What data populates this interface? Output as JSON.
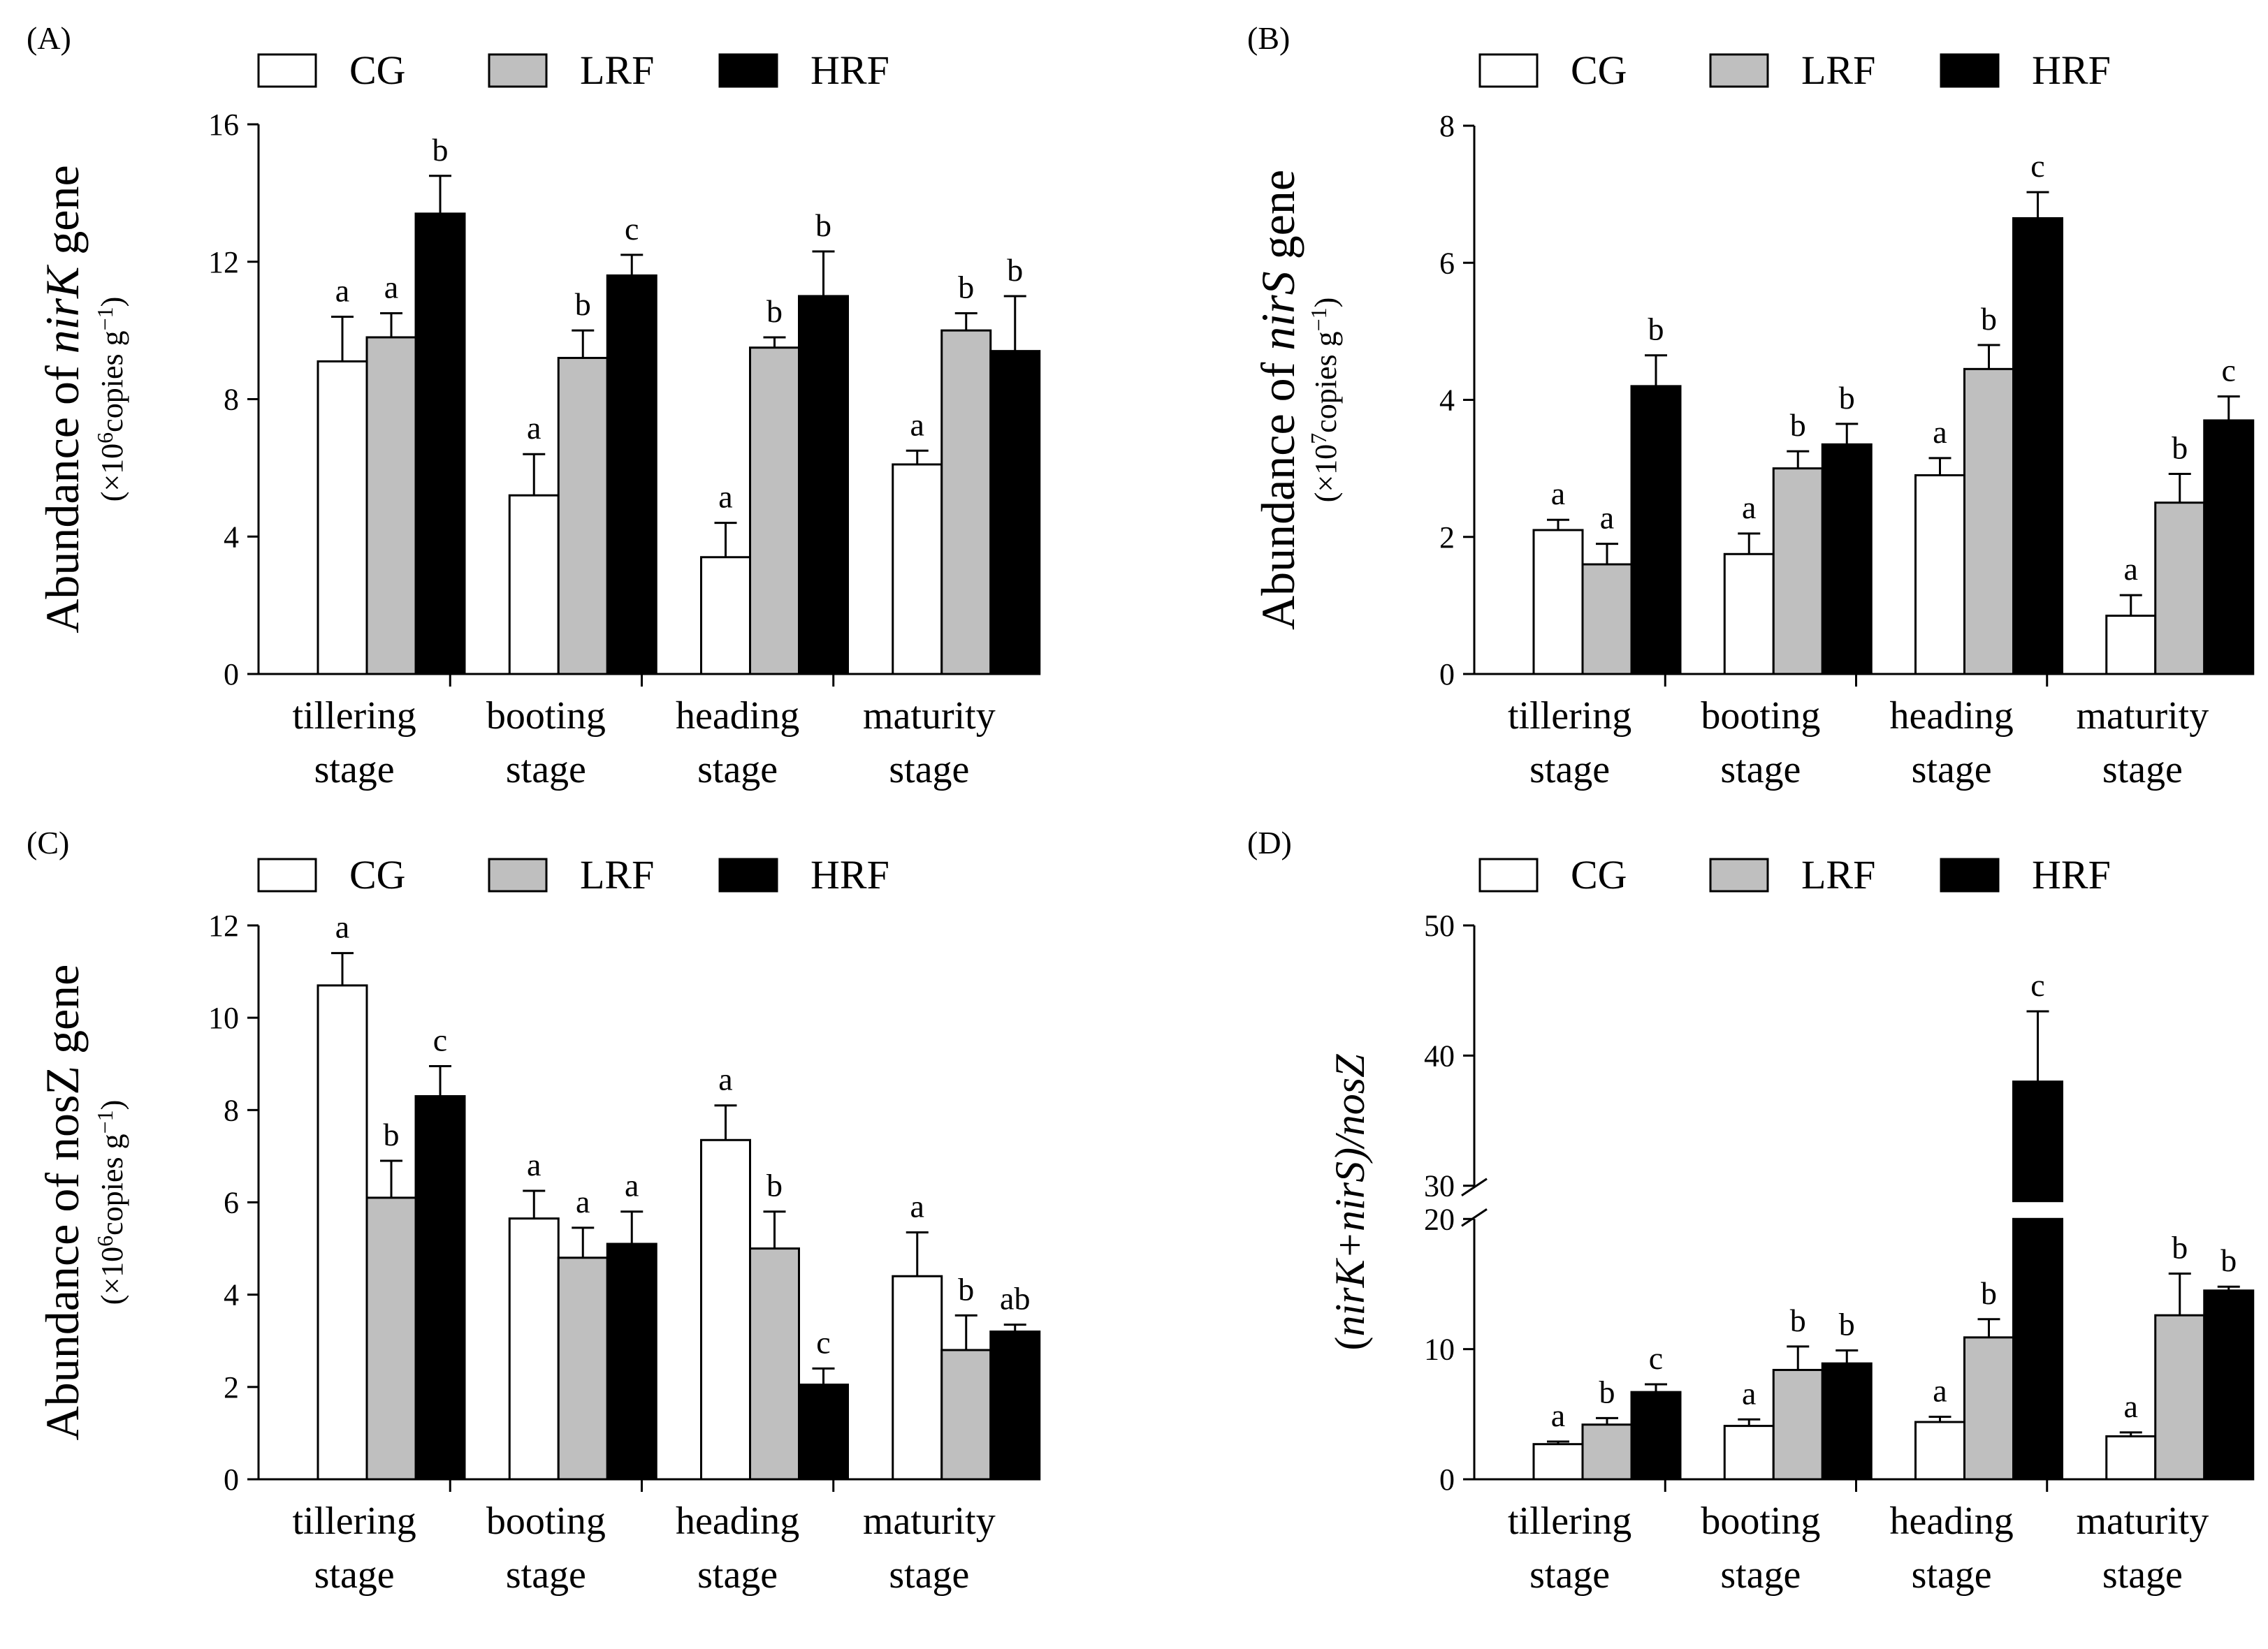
{
  "legend": {
    "CG": "CG",
    "LRF": "LRF",
    "HRF": "HRF"
  },
  "colors": {
    "CG": "#ffffff",
    "LRF": "#bfbfbf",
    "HRF": "#000000"
  },
  "chart_data": [
    {
      "type": "bar",
      "panel_label": "(A)",
      "categories": [
        [
          "tillering",
          "stage"
        ],
        [
          "booting",
          "stage"
        ],
        [
          "heading",
          "stage"
        ],
        [
          "maturity",
          "stage"
        ]
      ],
      "series": [
        {
          "name": "CG",
          "values": [
            9.1,
            5.2,
            3.4,
            6.1
          ],
          "errors": [
            1.3,
            1.2,
            1.0,
            0.4
          ],
          "letters": [
            "a",
            "a",
            "a",
            "a"
          ]
        },
        {
          "name": "LRF",
          "values": [
            9.8,
            9.2,
            9.5,
            10.0
          ],
          "errors": [
            0.7,
            0.8,
            0.3,
            0.5
          ],
          "letters": [
            "a",
            "b",
            "b",
            "b"
          ]
        },
        {
          "name": "HRF",
          "values": [
            13.4,
            11.6,
            11.0,
            9.4
          ],
          "errors": [
            1.1,
            0.6,
            1.3,
            1.6
          ],
          "letters": [
            "b",
            "c",
            "b",
            "b"
          ]
        }
      ],
      "ylim": [
        0,
        16
      ],
      "yticks": [
        "0",
        "4",
        "8",
        "12",
        "16"
      ],
      "ytick_values": [
        0,
        4,
        8,
        12,
        16
      ],
      "ylabel": {
        "prefix": "Abundance of ",
        "italic": "nirK",
        "suffix": " gene"
      },
      "ysub": {
        "open": "(×10",
        "exp": "6",
        "mid": "copies g",
        "exp2": "−1",
        "close": ")"
      }
    },
    {
      "type": "bar",
      "panel_label": "(B)",
      "categories": [
        [
          "tillering",
          "stage"
        ],
        [
          "booting",
          "stage"
        ],
        [
          "heading",
          "stage"
        ],
        [
          "maturity",
          "stage"
        ]
      ],
      "series": [
        {
          "name": "CG",
          "values": [
            2.1,
            1.75,
            2.9,
            0.85
          ],
          "errors": [
            0.15,
            0.3,
            0.25,
            0.3
          ],
          "letters": [
            "a",
            "a",
            "a",
            "a"
          ]
        },
        {
          "name": "LRF",
          "values": [
            1.6,
            3.0,
            4.45,
            2.5
          ],
          "errors": [
            0.3,
            0.25,
            0.35,
            0.42
          ],
          "letters": [
            "a",
            "b",
            "b",
            "b"
          ]
        },
        {
          "name": "HRF",
          "values": [
            4.2,
            3.35,
            6.65,
            3.7
          ],
          "errors": [
            0.45,
            0.3,
            0.38,
            0.35
          ],
          "letters": [
            "b",
            "b",
            "c",
            "c"
          ]
        }
      ],
      "ylim": [
        0,
        8
      ],
      "yticks": [
        "0",
        "2",
        "4",
        "6",
        "8"
      ],
      "ytick_values": [
        0,
        2,
        4,
        6,
        8
      ],
      "ylabel": {
        "prefix": "Abundance of ",
        "italic": "nirS",
        "suffix": " gene"
      },
      "ysub": {
        "open": "(×10",
        "exp": "7",
        "mid": "copies g",
        "exp2": "−1",
        "close": ")"
      }
    },
    {
      "type": "bar",
      "panel_label": "(C)",
      "categories": [
        [
          "tillering",
          "stage"
        ],
        [
          "booting",
          "stage"
        ],
        [
          "heading",
          "stage"
        ],
        [
          "maturity",
          "stage"
        ]
      ],
      "series": [
        {
          "name": "CG",
          "values": [
            10.7,
            5.65,
            7.35,
            4.4
          ],
          "errors": [
            0.7,
            0.6,
            0.75,
            0.95
          ],
          "letters": [
            "a",
            "a",
            "a",
            "a"
          ]
        },
        {
          "name": "LRF",
          "values": [
            6.1,
            4.8,
            5.0,
            2.8
          ],
          "errors": [
            0.8,
            0.65,
            0.8,
            0.75
          ],
          "letters": [
            "b",
            "a",
            "b",
            "b"
          ]
        },
        {
          "name": "HRF",
          "values": [
            8.3,
            5.1,
            2.05,
            3.2
          ],
          "errors": [
            0.65,
            0.7,
            0.35,
            0.15
          ],
          "letters": [
            "c",
            "a",
            "c",
            "ab"
          ]
        }
      ],
      "ylim": [
        0,
        12
      ],
      "yticks": [
        "0",
        "2",
        "4",
        "6",
        "8",
        "10",
        "12"
      ],
      "ytick_values": [
        0,
        2,
        4,
        6,
        8,
        10,
        12
      ],
      "ylabel": {
        "prefix": "Abundance of ",
        "italic": "",
        "suffix": "nosZ gene"
      },
      "ysub": {
        "open": "(×10",
        "exp": "6",
        "mid": "copies g",
        "exp2": "−1",
        "close": ")"
      }
    },
    {
      "type": "bar",
      "panel_label": "(D)",
      "categories": [
        [
          "tillering",
          "stage"
        ],
        [
          "booting",
          "stage"
        ],
        [
          "heading",
          "stage"
        ],
        [
          "maturity",
          "stage"
        ]
      ],
      "series": [
        {
          "name": "CG",
          "values": [
            2.7,
            4.1,
            4.4,
            3.3
          ],
          "errors": [
            0.2,
            0.5,
            0.4,
            0.3
          ],
          "letters": [
            "a",
            "a",
            "a",
            "a"
          ]
        },
        {
          "name": "LRF",
          "values": [
            4.2,
            8.4,
            10.9,
            12.6
          ],
          "errors": [
            0.5,
            1.8,
            1.4,
            3.2
          ],
          "letters": [
            "b",
            "b",
            "b",
            "b"
          ]
        },
        {
          "name": "HRF",
          "values": [
            6.7,
            8.9,
            38.0,
            14.5
          ],
          "errors": [
            0.6,
            1.0,
            5.4,
            0.3
          ],
          "letters": [
            "c",
            "b",
            "c",
            "b"
          ]
        }
      ],
      "ylim": [
        0,
        50
      ],
      "axis_break": [
        20,
        30
      ],
      "yticks": [
        "0",
        "10",
        "20",
        "30",
        "40",
        "50"
      ],
      "ytick_values": [
        0,
        10,
        20,
        30,
        40,
        50
      ],
      "ylabel": {
        "prefix": "(",
        "italic": "nirK+nirS",
        "suffix": ")/nosZ"
      }
    }
  ]
}
